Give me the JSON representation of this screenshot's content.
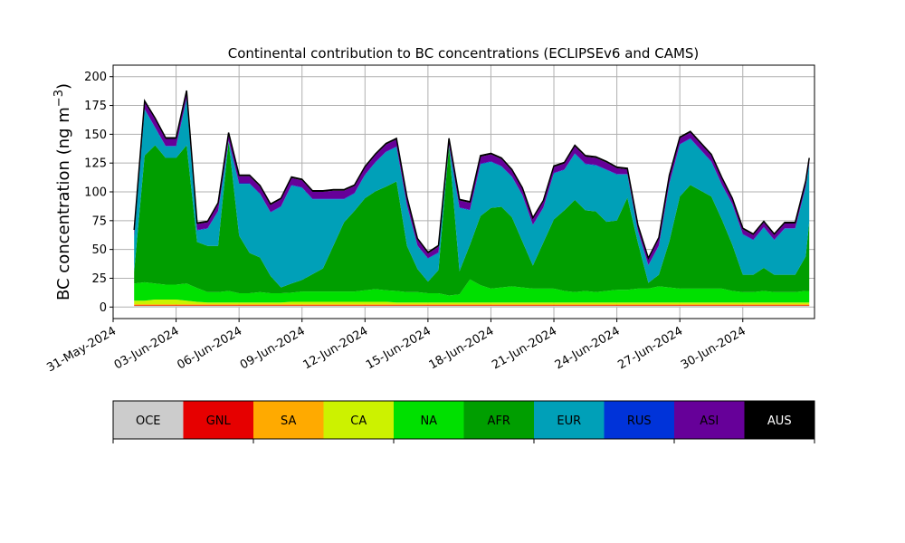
{
  "chart_data": {
    "type": "area",
    "stacked": true,
    "title": "Continental contribution to BC concentrations (ECLIPSEv6 and CAMS)",
    "ylabel": "BC concentration (ng m",
    "ylabel_sup": "−3",
    "ylabel_close": ")",
    "ylim": [
      -10,
      210
    ],
    "yticks": [
      0,
      25,
      50,
      75,
      100,
      125,
      150,
      175,
      200
    ],
    "xlim": [
      "2024-05-31",
      "2024-07-03T10:00"
    ],
    "xticks": [
      "31-May-2024",
      "03-Jun-2024",
      "06-Jun-2024",
      "09-Jun-2024",
      "12-Jun-2024",
      "15-Jun-2024",
      "18-Jun-2024",
      "21-Jun-2024",
      "24-Jun-2024",
      "27-Jun-2024",
      "30-Jun-2024"
    ],
    "grid": true,
    "legend_position": "bottom",
    "x": [
      "2024-06-01",
      "2024-06-01T12:00",
      "2024-06-02",
      "2024-06-02T12:00",
      "2024-06-03",
      "2024-06-03T12:00",
      "2024-06-04",
      "2024-06-04T12:00",
      "2024-06-05",
      "2024-06-05T12:00",
      "2024-06-06",
      "2024-06-06T12:00",
      "2024-06-07",
      "2024-06-07T12:00",
      "2024-06-08",
      "2024-06-08T12:00",
      "2024-06-09",
      "2024-06-09T12:00",
      "2024-06-10",
      "2024-06-10T12:00",
      "2024-06-11",
      "2024-06-11T12:00",
      "2024-06-12",
      "2024-06-12T12:00",
      "2024-06-13",
      "2024-06-13T12:00",
      "2024-06-14",
      "2024-06-14T12:00",
      "2024-06-15",
      "2024-06-15T12:00",
      "2024-06-16",
      "2024-06-16T12:00",
      "2024-06-17",
      "2024-06-17T12:00",
      "2024-06-18",
      "2024-06-18T12:00",
      "2024-06-19",
      "2024-06-19T12:00",
      "2024-06-20",
      "2024-06-20T12:00",
      "2024-06-21",
      "2024-06-21T12:00",
      "2024-06-22",
      "2024-06-22T12:00",
      "2024-06-23",
      "2024-06-23T12:00",
      "2024-06-24",
      "2024-06-24T12:00",
      "2024-06-25",
      "2024-06-25T12:00",
      "2024-06-26",
      "2024-06-26T12:00",
      "2024-06-27",
      "2024-06-27T12:00",
      "2024-06-28",
      "2024-06-28T12:00",
      "2024-06-29",
      "2024-06-29T12:00",
      "2024-06-30",
      "2024-06-30T12:00",
      "2024-07-01",
      "2024-07-01T12:00",
      "2024-07-02",
      "2024-07-02T12:00",
      "2024-07-03",
      "2024-07-03T04:00"
    ],
    "series": [
      {
        "name": "OCE",
        "color": "#cccccc",
        "values": [
          1,
          1,
          1,
          1,
          1,
          1,
          1,
          1,
          1,
          1,
          1,
          1,
          1,
          1,
          1,
          1,
          1,
          1,
          1,
          1,
          1,
          1,
          1,
          1,
          1,
          1,
          1,
          1,
          1,
          1,
          1,
          1,
          1,
          1,
          1,
          1,
          1,
          1,
          1,
          1,
          1,
          1,
          1,
          1,
          1,
          1,
          1,
          1,
          1,
          1,
          1,
          1,
          1,
          1,
          1,
          1,
          1,
          1,
          1,
          1,
          1,
          1,
          1,
          1,
          1,
          1
        ]
      },
      {
        "name": "GNL",
        "color": "#e60000",
        "values": [
          0.5,
          0.5,
          0.5,
          0.5,
          0.5,
          0.5,
          0.5,
          0.5,
          0.5,
          0.5,
          0.5,
          0.5,
          0.5,
          0.5,
          0.5,
          0.5,
          0.5,
          0.5,
          0.5,
          0.5,
          0.5,
          0.5,
          0.5,
          0.5,
          0.5,
          0.5,
          0.5,
          0.5,
          0.5,
          0.5,
          0.5,
          0.5,
          0.5,
          0.5,
          0.5,
          0.5,
          0.5,
          0.5,
          0.5,
          0.5,
          0.5,
          0.5,
          0.5,
          0.5,
          0.5,
          0.5,
          0.5,
          0.5,
          0.5,
          0.5,
          0.5,
          0.5,
          0.5,
          0.5,
          0.5,
          0.5,
          0.5,
          0.5,
          0.5,
          0.5,
          0.5,
          0.5,
          0.5,
          0.5,
          0.5,
          0.5
        ]
      },
      {
        "name": "SA",
        "color": "#ffaa00",
        "values": [
          1,
          1,
          1,
          1,
          1,
          1,
          1,
          1,
          1,
          1,
          1,
          1,
          1,
          1,
          1,
          1,
          1,
          1,
          1,
          1,
          1,
          1,
          1,
          1,
          1,
          1,
          1,
          1,
          1,
          1,
          1,
          1,
          1,
          1,
          1,
          1,
          1,
          1,
          1,
          1,
          1,
          1,
          1,
          1,
          1,
          1,
          1,
          1,
          1,
          1,
          1,
          1,
          1,
          1,
          1,
          1,
          1,
          1,
          1,
          1,
          1,
          1,
          1,
          1,
          1,
          1
        ]
      },
      {
        "name": "CA",
        "color": "#ccf200",
        "values": [
          3,
          3,
          4,
          4,
          4,
          3,
          2,
          1.5,
          1.5,
          1.5,
          1.5,
          1.5,
          1.5,
          1.5,
          1.5,
          2,
          2,
          2,
          2,
          2,
          2,
          2,
          2,
          2,
          2,
          1.5,
          1.5,
          1.5,
          1.5,
          1.5,
          1.5,
          1.5,
          1.5,
          1.5,
          1.5,
          1.5,
          1.5,
          1.5,
          1.5,
          1.5,
          1.5,
          1.5,
          1.5,
          1.5,
          1.5,
          1.5,
          1.5,
          1.5,
          1.5,
          1.5,
          1.5,
          1.5,
          1.5,
          1.5,
          1.5,
          1.5,
          1.5,
          1.5,
          1.5,
          1.5,
          1.5,
          1.5,
          1.5,
          1.5,
          1.5,
          1.5
        ]
      },
      {
        "name": "NA",
        "color": "#00e000",
        "values": [
          15,
          16,
          14,
          13,
          13,
          15,
          12,
          9,
          9,
          10,
          8,
          8,
          9,
          8,
          8,
          8,
          9,
          9,
          9,
          9,
          9,
          9,
          10,
          11,
          10,
          10,
          9,
          9,
          8,
          8,
          6,
          7,
          20,
          15,
          12,
          13,
          14,
          13,
          12,
          12,
          12,
          10,
          9,
          10,
          9,
          10,
          11,
          11,
          12,
          12,
          14,
          13,
          12,
          12,
          12,
          12,
          12,
          10,
          9,
          9,
          10,
          9,
          9,
          9,
          10,
          10
        ]
      },
      {
        "name": "AFR",
        "color": "#009e00",
        "values": [
          10,
          110,
          120,
          110,
          110,
          120,
          40,
          40,
          40,
          130,
          50,
          35,
          30,
          15,
          5,
          8,
          10,
          15,
          20,
          40,
          60,
          70,
          80,
          85,
          90,
          95,
          40,
          20,
          10,
          20,
          130,
          20,
          30,
          60,
          70,
          70,
          60,
          40,
          20,
          40,
          60,
          70,
          80,
          70,
          70,
          60,
          60,
          80,
          40,
          5,
          10,
          40,
          80,
          90,
          85,
          80,
          60,
          40,
          15,
          15,
          20,
          15,
          15,
          15,
          30,
          60
        ]
      },
      {
        "name": "EUR",
        "color": "#00a0b8",
        "values": [
          30,
          40,
          15,
          10,
          10,
          40,
          10,
          15,
          30,
          0,
          45,
          60,
          55,
          55,
          70,
          85,
          80,
          65,
          60,
          40,
          20,
          15,
          20,
          25,
          30,
          30,
          35,
          20,
          20,
          15,
          0,
          55,
          30,
          45,
          40,
          35,
          35,
          40,
          35,
          30,
          40,
          35,
          40,
          40,
          40,
          45,
          40,
          20,
          10,
          15,
          25,
          50,
          45,
          40,
          35,
          30,
          30,
          35,
          35,
          30,
          35,
          30,
          40,
          40,
          60,
          50
        ]
      },
      {
        "name": "RUS",
        "color": "#0033d9",
        "values": [
          0.5,
          0.5,
          0.5,
          0.5,
          0.5,
          0.5,
          0.5,
          0.5,
          0.5,
          0.5,
          0.5,
          0.5,
          0.5,
          0.5,
          0.5,
          0.5,
          0.5,
          0.5,
          0.5,
          0.5,
          0.5,
          0.5,
          0.5,
          0.5,
          0.5,
          0.5,
          0.5,
          0.5,
          0.5,
          0.5,
          0.5,
          0.5,
          0.5,
          0.5,
          0.5,
          0.5,
          0.5,
          0.5,
          0.5,
          0.5,
          0.5,
          0.5,
          0.5,
          0.5,
          0.5,
          0.5,
          0.5,
          0.5,
          0.5,
          0.5,
          0.5,
          0.5,
          0.5,
          0.5,
          0.5,
          0.5,
          0.5,
          0.5,
          0.5,
          0.5,
          0.5,
          0.5,
          0.5,
          0.5,
          0.5,
          0.5
        ]
      },
      {
        "name": "ASI",
        "color": "#660099",
        "values": [
          5,
          6,
          7,
          6,
          6,
          6,
          5,
          5,
          6,
          6,
          6,
          6,
          6,
          6,
          6,
          6,
          6,
          6,
          6,
          7,
          7,
          6,
          6,
          6,
          6,
          6,
          6,
          5,
          4,
          5,
          5,
          6,
          6,
          6,
          6,
          6,
          5,
          5,
          5,
          5,
          5,
          5,
          6,
          6,
          6,
          6,
          5,
          4,
          4,
          5,
          6,
          6,
          5,
          5,
          5,
          5,
          5,
          4,
          4,
          4,
          4,
          4,
          4,
          4,
          4,
          4
        ]
      },
      {
        "name": "AUS",
        "color": "#000000",
        "values": [
          1,
          1,
          1,
          1,
          1,
          1,
          1,
          1,
          1,
          1,
          1,
          1,
          1,
          1,
          1,
          1,
          1,
          1,
          1,
          1,
          1,
          1,
          1,
          1,
          1,
          1,
          1,
          1,
          1,
          1,
          1,
          1,
          1,
          1,
          1,
          1,
          1,
          1,
          1,
          1,
          1,
          1,
          1,
          1,
          1,
          1,
          1,
          1,
          1,
          1,
          1,
          1,
          1,
          1,
          1,
          1,
          1,
          1,
          1,
          1,
          1,
          1,
          1,
          1,
          1,
          1
        ]
      }
    ]
  }
}
